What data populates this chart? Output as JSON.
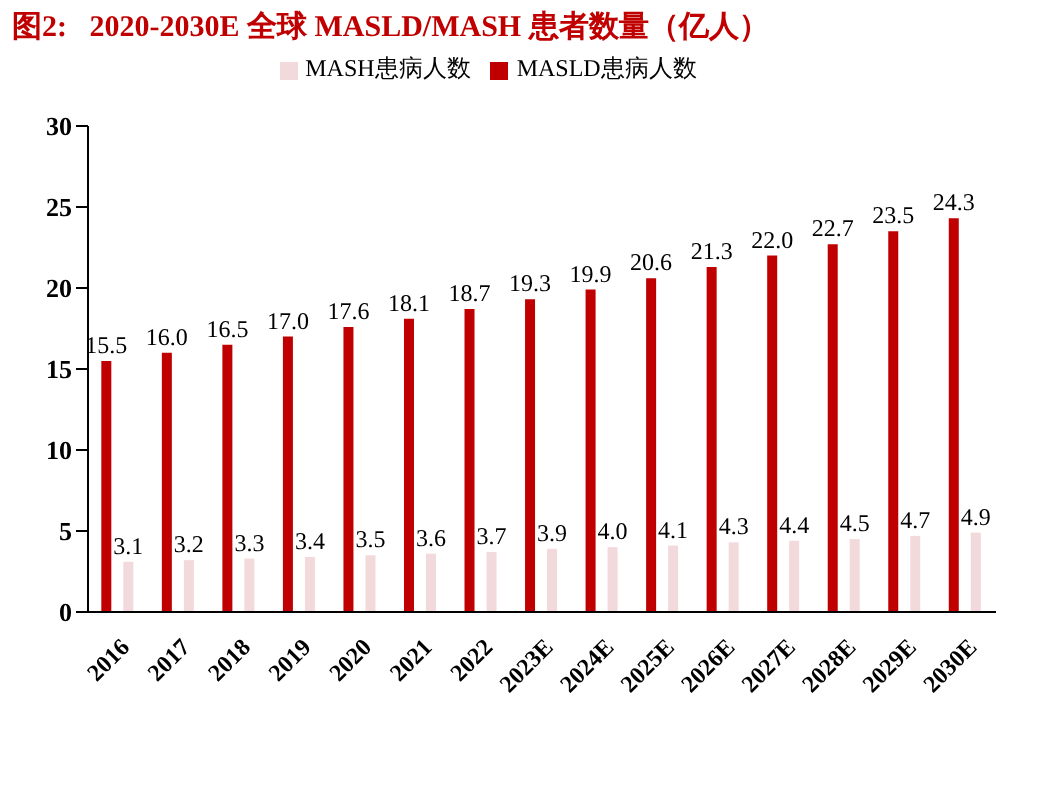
{
  "chart_data": {
    "type": "bar",
    "title": "图2:   2020-2030E 全球 MASLD/MASH 患者数量（亿人）",
    "categories": [
      "2016",
      "2017",
      "2018",
      "2019",
      "2020",
      "2021",
      "2022",
      "2023E",
      "2024E",
      "2025E",
      "2026E",
      "2027E",
      "2028E",
      "2029E",
      "2030E"
    ],
    "series": [
      {
        "name": "MASLD患病人数",
        "color": "#c00000",
        "values": [
          15.5,
          16.0,
          16.5,
          17.0,
          17.6,
          18.1,
          18.7,
          19.3,
          19.9,
          20.6,
          21.3,
          22.0,
          22.7,
          23.5,
          24.3
        ],
        "value_labels": [
          "15.5",
          "16.0",
          "16.5",
          "17.0",
          "17.6",
          "18.1",
          "18.7",
          "19.3",
          "19.9",
          "20.6",
          "21.3",
          "22.0",
          "22.7",
          "23.5",
          "24.3"
        ]
      },
      {
        "name": "MASH患病人数",
        "color": "#f2d9db",
        "values": [
          3.1,
          3.2,
          3.3,
          3.4,
          3.5,
          3.6,
          3.7,
          3.9,
          4.0,
          4.1,
          4.3,
          4.4,
          4.5,
          4.7,
          4.9
        ],
        "value_labels": [
          "3.1",
          "3.2",
          "3.3",
          "3.4",
          "3.5",
          "3.6",
          "3.7",
          "3.9",
          "4.0",
          "4.1",
          "4.3",
          "4.4",
          "4.5",
          "4.7",
          "4.9"
        ]
      }
    ],
    "ylim": [
      0,
      30
    ],
    "yticks": [
      0,
      5,
      10,
      15,
      20,
      25,
      30
    ],
    "grid": false,
    "legend": "top"
  }
}
